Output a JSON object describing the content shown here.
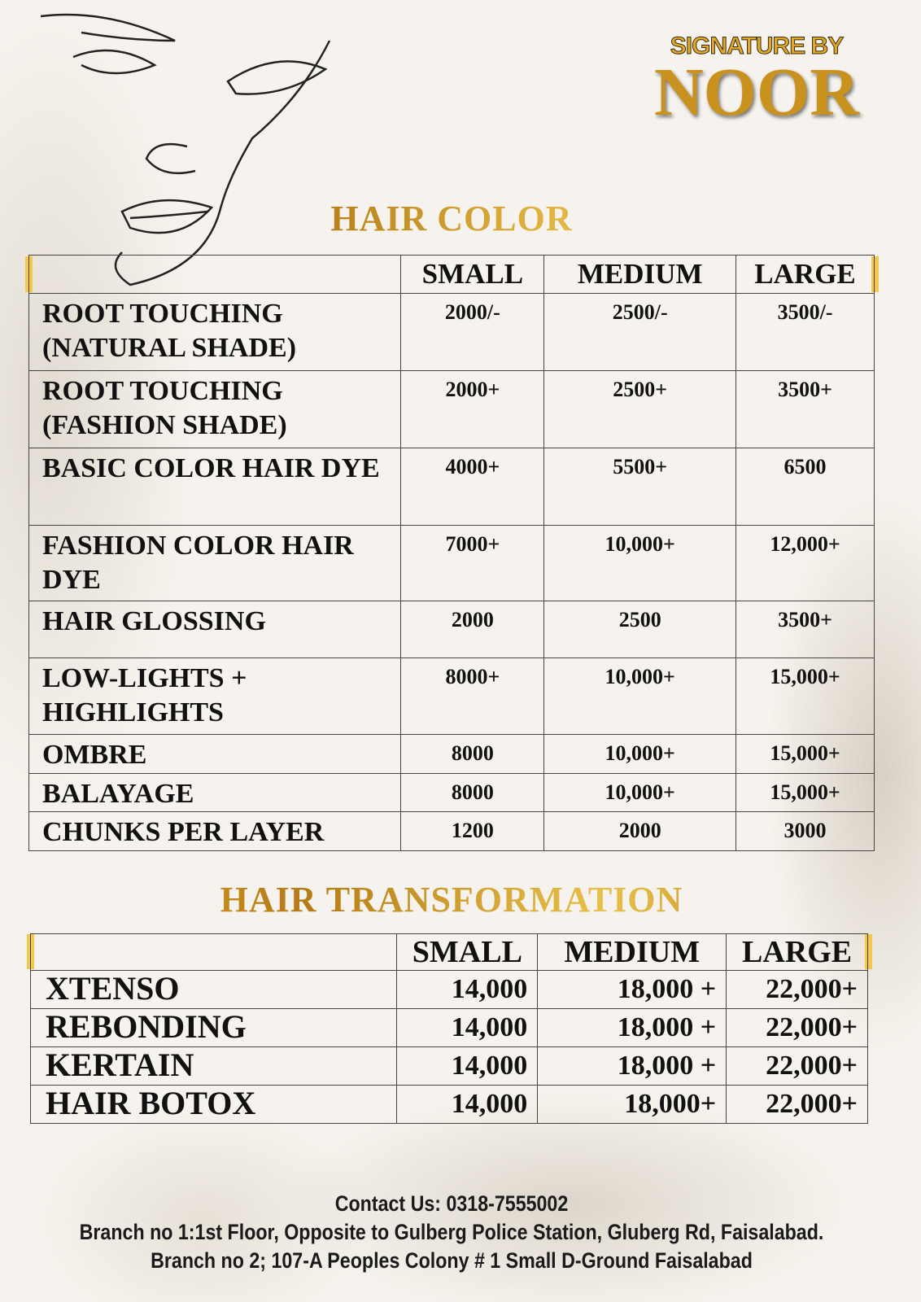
{
  "brand": {
    "line1": "SIGNATURE BY",
    "line2": "NOOR"
  },
  "hair_color": {
    "title": "HAIR COLOR",
    "columns": [
      "SMALL",
      "MEDIUM",
      "LARGE"
    ],
    "rows": [
      {
        "service": "ROOT TOUCHING (NATURAL SHADE)",
        "small": "2000/-",
        "medium": "2500/-",
        "large": "3500/-"
      },
      {
        "service": "ROOT TOUCHING (FASHION SHADE)",
        "small": "2000+",
        "medium": "2500+",
        "large": "3500+"
      },
      {
        "service": "BASIC COLOR HAIR DYE",
        "small": "4000+",
        "medium": "5500+",
        "large": "6500"
      },
      {
        "service": "FASHION COLOR HAIR DYE",
        "small": "7000+",
        "medium": "10,000+",
        "large": "12,000+"
      },
      {
        "service": "HAIR GLOSSING",
        "small": "2000",
        "medium": "2500",
        "large": "3500+"
      },
      {
        "service": "LOW-LIGHTS + HIGHLIGHTS",
        "small": "8000+",
        "medium": "10,000+",
        "large": "15,000+"
      },
      {
        "service": "OMBRE",
        "small": "8000",
        "medium": "10,000+",
        "large": "15,000+"
      },
      {
        "service": "BALAYAGE",
        "small": "8000",
        "medium": "10,000+",
        "large": "15,000+"
      },
      {
        "service": "CHUNKS PER LAYER",
        "small": "1200",
        "medium": "2000",
        "large": "3000"
      }
    ]
  },
  "hair_transformation": {
    "title": "HAIR TRANSFORMATION",
    "columns": [
      "SMALL",
      "MEDIUM",
      "LARGE"
    ],
    "rows": [
      {
        "service": "XTENSO",
        "small": "14,000",
        "medium": "18,000 +",
        "large": "22,000+"
      },
      {
        "service": "REBONDING",
        "small": "14,000",
        "medium": "18,000 +",
        "large": "22,000+"
      },
      {
        "service": "KERTAIN",
        "small": "14,000",
        "medium": "18,000 +",
        "large": "22,000+"
      },
      {
        "service": "HAIR BOTOX",
        "small": "14,000",
        "medium": "18,000+",
        "large": "22,000+"
      }
    ]
  },
  "footer": {
    "contact": "Contact Us: 0318-7555002",
    "branch1": "Branch no 1:1st Floor, Opposite to Gulberg Police Station, Gluberg Rd, Faisalabad.",
    "branch2": "Branch no 2; 107-A Peoples Colony # 1 Small D-Ground Faisalabad"
  },
  "colors": {
    "gold": "#c8961f",
    "accent_bar": "#f2c94c",
    "background": "#f6f3ee"
  }
}
